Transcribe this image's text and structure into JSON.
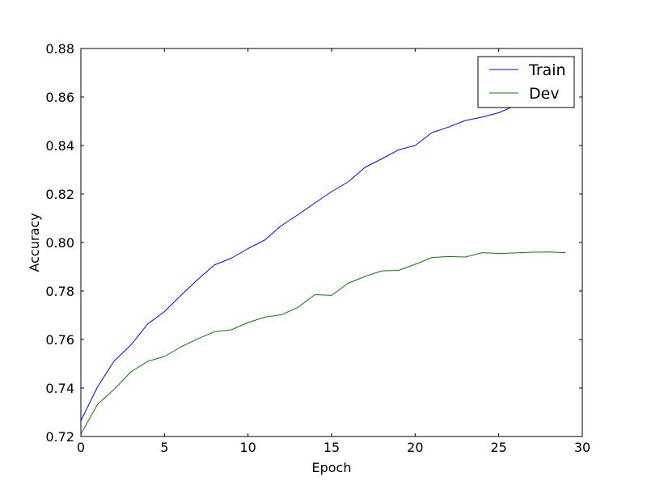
{
  "chart_data": {
    "type": "line",
    "title": "",
    "xlabel": "Epoch",
    "ylabel": "Accuracy",
    "xlim": [
      0,
      30
    ],
    "ylim": [
      0.72,
      0.88
    ],
    "xticks": [
      0,
      5,
      10,
      15,
      20,
      25,
      30
    ],
    "yticks": [
      0.72,
      0.74,
      0.76,
      0.78,
      0.8,
      0.82,
      0.84,
      0.86,
      0.88
    ],
    "xtick_labels": [
      "0",
      "5",
      "10",
      "15",
      "20",
      "25",
      "30"
    ],
    "ytick_labels": [
      "0.72",
      "0.74",
      "0.76",
      "0.78",
      "0.80",
      "0.82",
      "0.84",
      "0.86",
      "0.88"
    ],
    "grid": false,
    "legend_position": "top-right",
    "x": [
      0,
      1,
      2,
      3,
      4,
      5,
      6,
      7,
      8,
      9,
      10,
      11,
      12,
      13,
      14,
      15,
      16,
      17,
      18,
      19,
      20,
      21,
      22,
      23,
      24,
      25,
      26,
      27,
      28,
      29
    ],
    "series": [
      {
        "name": "Train",
        "color": "#0000ff",
        "values": [
          0.7265,
          0.7405,
          0.7512,
          0.7578,
          0.7664,
          0.7715,
          0.7783,
          0.7848,
          0.7908,
          0.7935,
          0.7975,
          0.801,
          0.807,
          0.8115,
          0.8163,
          0.821,
          0.825,
          0.831,
          0.8345,
          0.8382,
          0.84,
          0.8453,
          0.8476,
          0.8503,
          0.8517,
          0.8535,
          0.8565,
          0.86,
          0.864,
          0.867
        ]
      },
      {
        "name": "Dev",
        "color": "#008000",
        "values": [
          0.721,
          0.7333,
          0.7395,
          0.7467,
          0.751,
          0.753,
          0.757,
          0.7603,
          0.7632,
          0.764,
          0.767,
          0.7692,
          0.7702,
          0.7733,
          0.7785,
          0.7782,
          0.7832,
          0.786,
          0.7883,
          0.7885,
          0.791,
          0.7938,
          0.7942,
          0.794,
          0.7958,
          0.7955,
          0.7957,
          0.796,
          0.7961,
          0.7958
        ]
      }
    ]
  }
}
